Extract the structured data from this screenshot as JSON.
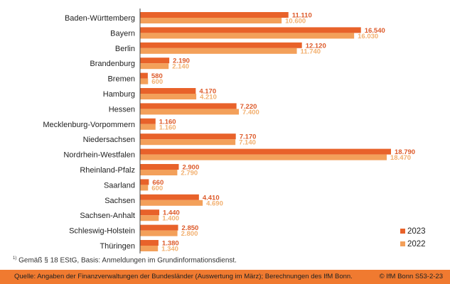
{
  "chart_data": {
    "type": "bar",
    "orientation": "horizontal",
    "categories": [
      "Baden-Württemberg",
      "Bayern",
      "Berlin",
      "Brandenburg",
      "Bremen",
      "Hamburg",
      "Hessen",
      "Mecklenburg-Vorpommern",
      "Niedersachsen",
      "Nordrhein-Westfalen",
      "Rheinland-Pfalz",
      "Saarland",
      "Sachsen",
      "Sachsen-Anhalt",
      "Schleswig-Holstein",
      "Thüringen"
    ],
    "series": [
      {
        "name": "2023",
        "color": "#e8622a",
        "label_color": "#dd5a2a",
        "values": [
          11110,
          16540,
          12120,
          2190,
          580,
          4170,
          7220,
          1160,
          7170,
          18790,
          2900,
          660,
          4410,
          1440,
          2850,
          1380
        ],
        "labels": [
          "11.110",
          "16.540",
          "12.120",
          "2.190",
          "580",
          "4.170",
          "7.220",
          "1.160",
          "7.170",
          "18.790",
          "2.900",
          "660",
          "4.410",
          "1.440",
          "2.850",
          "1.380"
        ]
      },
      {
        "name": "2022",
        "color": "#f3a05a",
        "label_color": "#f2b070",
        "values": [
          10600,
          16030,
          11740,
          2140,
          600,
          4210,
          7400,
          1160,
          7140,
          18470,
          2790,
          600,
          4690,
          1400,
          2800,
          1340
        ],
        "labels": [
          "10.600",
          "16.030",
          "11.740",
          "2.140",
          "600",
          "4.210",
          "7.400",
          "1.160",
          "7.140",
          "18.470",
          "2.790",
          "600",
          "4.690",
          "1.400",
          "2.800",
          "1.340"
        ]
      }
    ],
    "xlim": [
      0,
      18790
    ],
    "grid": false,
    "legend_position": "bottom-right"
  },
  "footnote": {
    "marker": "1)",
    "text": "Gemäß § 18 EStG, Basis: Anmeldungen im Grundinformationsdienst."
  },
  "footer": {
    "source": "Quelle: Angaben der Finanzverwaltungen der Bundesländer (Auswertung im März); Berechnungen des IfM Bonn.",
    "copyright": "© IfM Bonn  S53-2-23"
  }
}
